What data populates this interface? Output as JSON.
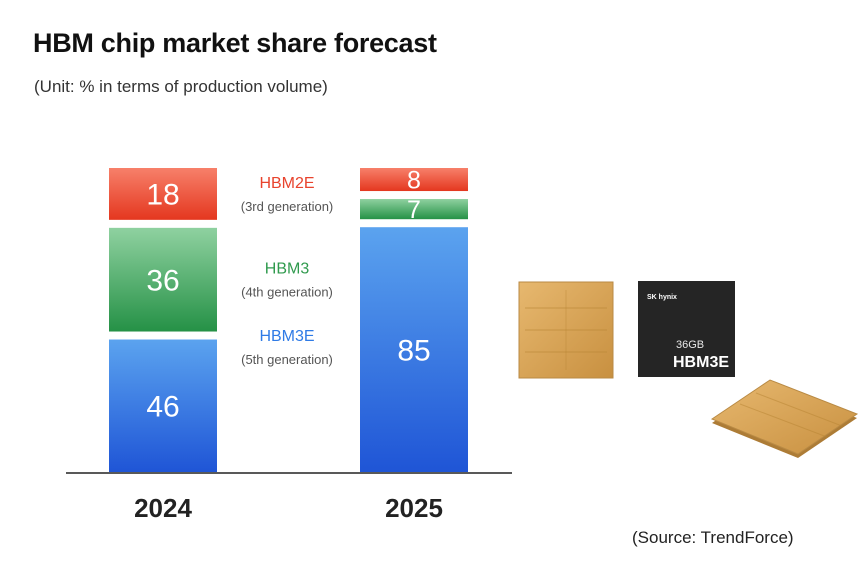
{
  "title": "HBM chip market share forecast",
  "subtitle": "(Unit: % in terms of production volume)",
  "source": "(Source: TrendForce)",
  "chart_data": {
    "type": "bar",
    "stacked": true,
    "categories": [
      "2024",
      "2025"
    ],
    "series": [
      {
        "name": "HBM3E",
        "generation": "(5th generation)",
        "values": [
          46,
          85
        ],
        "color": "#2f6fe0"
      },
      {
        "name": "HBM3",
        "generation": "(4th generation)",
        "values": [
          36,
          7
        ],
        "color": "#3ea457"
      },
      {
        "name": "HBM2E",
        "generation": "(3rd generation)",
        "values": [
          18,
          8
        ],
        "color": "#ee4b36"
      }
    ],
    "title": "HBM chip market share forecast",
    "xlabel": "",
    "ylabel": "",
    "ylim": [
      0,
      100
    ]
  },
  "product": {
    "brand": "SK hynix",
    "capacity": "36GB",
    "model": "HBM3E"
  }
}
